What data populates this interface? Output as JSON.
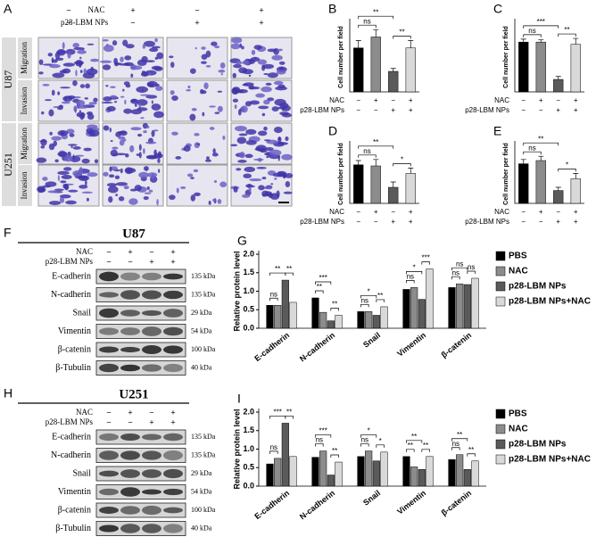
{
  "panel_a": {
    "label": "A",
    "conditions": [
      {
        "name": "NAC",
        "signs": [
          "−",
          "+",
          "−",
          "+"
        ]
      },
      {
        "name": "p28-LBM NPs",
        "signs": [
          "−",
          "−",
          "+",
          "+"
        ]
      }
    ],
    "cell_lines": [
      {
        "name": "U87",
        "assays": [
          "Migration",
          "Invasion"
        ]
      },
      {
        "name": "U251",
        "assays": [
          "Migration",
          "Invasion"
        ]
      }
    ]
  },
  "chart_data": [
    {
      "label": "B",
      "type": "bar",
      "ylabel": "Cell number per field",
      "conditions": [
        {
          "name": "NAC",
          "signs": [
            "−",
            "+",
            "−",
            "+"
          ]
        },
        {
          "name": "p28-LBM NPs",
          "signs": [
            "−",
            "−",
            "+",
            "+"
          ]
        }
      ],
      "values": [
        60,
        75,
        28,
        60
      ],
      "errors": [
        10,
        10,
        4,
        10
      ],
      "colors": [
        "#000000",
        "#8c8c8c",
        "#5a5a5a",
        "#d9d9d9"
      ],
      "ylim": [
        0,
        95
      ],
      "significance": [
        {
          "from": 0,
          "to": 1,
          "text": "ns"
        },
        {
          "from": 0,
          "to": 2,
          "text": "**"
        },
        {
          "from": 2,
          "to": 3,
          "text": "**"
        }
      ]
    },
    {
      "label": "C",
      "type": "bar",
      "ylabel": "Cell number per field",
      "conditions": [
        {
          "name": "NAC",
          "signs": [
            "−",
            "+",
            "−",
            "+"
          ]
        },
        {
          "name": "p28-LBM NPs",
          "signs": [
            "−",
            "−",
            "+",
            "+"
          ]
        }
      ],
      "values": [
        68,
        68,
        17,
        65
      ],
      "errors": [
        4,
        3,
        4,
        8
      ],
      "colors": [
        "#000000",
        "#8c8c8c",
        "#5a5a5a",
        "#d9d9d9"
      ],
      "ylim": [
        0,
        95
      ],
      "significance": [
        {
          "from": 0,
          "to": 1,
          "text": "ns"
        },
        {
          "from": 0,
          "to": 2,
          "text": "***"
        },
        {
          "from": 2,
          "to": 3,
          "text": "**"
        }
      ]
    },
    {
      "label": "D",
      "type": "bar",
      "ylabel": "Cell number per field",
      "conditions": [
        {
          "name": "NAC",
          "signs": [
            "−",
            "+",
            "−",
            "+"
          ]
        },
        {
          "name": "p28-LBM NPs",
          "signs": [
            "−",
            "−",
            "+",
            "+"
          ]
        }
      ],
      "values": [
        36,
        35,
        15,
        28
      ],
      "errors": [
        4,
        6,
        5,
        5
      ],
      "colors": [
        "#000000",
        "#8c8c8c",
        "#5a5a5a",
        "#d9d9d9"
      ],
      "ylim": [
        0,
        55
      ],
      "significance": [
        {
          "from": 0,
          "to": 1,
          "text": "ns"
        },
        {
          "from": 0,
          "to": 2,
          "text": "**"
        },
        {
          "from": 2,
          "to": 3,
          "text": "*"
        }
      ]
    },
    {
      "label": "E",
      "type": "bar",
      "ylabel": "Cell number per field",
      "conditions": [
        {
          "name": "NAC",
          "signs": [
            "−",
            "+",
            "−",
            "+"
          ]
        },
        {
          "name": "p28-LBM NPs",
          "signs": [
            "−",
            "−",
            "+",
            "+"
          ]
        }
      ],
      "values": [
        37,
        40,
        12,
        23
      ],
      "errors": [
        4,
        4,
        3,
        5
      ],
      "colors": [
        "#000000",
        "#8c8c8c",
        "#5a5a5a",
        "#d9d9d9"
      ],
      "ylim": [
        0,
        55
      ],
      "significance": [
        {
          "from": 0,
          "to": 1,
          "text": "ns"
        },
        {
          "from": 0,
          "to": 2,
          "text": "**"
        },
        {
          "from": 2,
          "to": 3,
          "text": "*"
        }
      ]
    },
    {
      "label": "G",
      "type": "grouped_bar",
      "ylabel": "Relative protein level",
      "categories": [
        "E-cadherin",
        "N-cadherin",
        "Snail",
        "Vimentin",
        "β-catenin"
      ],
      "series": [
        {
          "name": "PBS",
          "color": "#000000",
          "values": [
            0.62,
            0.82,
            0.45,
            1.05,
            1.1
          ]
        },
        {
          "name": "NAC",
          "color": "#8c8c8c",
          "values": [
            0.62,
            0.43,
            0.45,
            1.1,
            1.2
          ]
        },
        {
          "name": "p28-LBM NPs",
          "color": "#5a5a5a",
          "values": [
            1.3,
            0.2,
            0.35,
            0.78,
            1.18
          ]
        },
        {
          "name": "p28-LBM NPs+NAC",
          "color": "#d9d9d9",
          "values": [
            0.7,
            0.35,
            0.58,
            1.6,
            1.35
          ]
        }
      ],
      "ylim": [
        0,
        2
      ],
      "yticks": [
        {
          "value": 0,
          "label": "0.0"
        },
        0.5,
        {
          "value": 1,
          "label": "1.0"
        },
        1.5,
        {
          "value": 2,
          "label": "2.0"
        }
      ],
      "legend": "right",
      "significance": [
        [
          {
            "from": 0,
            "to": 1,
            "text": "ns"
          },
          {
            "from": 0,
            "to": 2,
            "text": "**"
          },
          {
            "from": 2,
            "to": 3,
            "text": "**"
          }
        ],
        [
          {
            "from": 0,
            "to": 1,
            "text": "**"
          },
          {
            "from": 0,
            "to": 2,
            "text": "***"
          },
          {
            "from": 2,
            "to": 3,
            "text": "**"
          }
        ],
        [
          {
            "from": 0,
            "to": 1,
            "text": "ns"
          },
          {
            "from": 0,
            "to": 2,
            "text": "*"
          },
          {
            "from": 2,
            "to": 3,
            "text": "**"
          }
        ],
        [
          {
            "from": 0,
            "to": 1,
            "text": "ns"
          },
          {
            "from": 0,
            "to": 2,
            "text": "*"
          },
          {
            "from": 2,
            "to": 3,
            "text": "***"
          }
        ],
        [
          {
            "from": 0,
            "to": 1,
            "text": "ns"
          },
          {
            "from": 0,
            "to": 2,
            "text": "ns"
          },
          {
            "from": 2,
            "to": 3,
            "text": "ns"
          }
        ]
      ]
    },
    {
      "label": "I",
      "type": "grouped_bar",
      "ylabel": "Relative protein level",
      "categories": [
        "E-cadherin",
        "N-cadherin",
        "Snail",
        "Vimentin",
        "β-catenin"
      ],
      "series": [
        {
          "name": "PBS",
          "color": "#000000",
          "values": [
            0.6,
            0.78,
            0.8,
            0.8,
            0.72
          ]
        },
        {
          "name": "NAC",
          "color": "#8c8c8c",
          "values": [
            0.75,
            0.95,
            0.95,
            0.52,
            0.85
          ]
        },
        {
          "name": "p28-LBM NPs",
          "color": "#5a5a5a",
          "values": [
            1.7,
            0.3,
            0.68,
            0.45,
            0.45
          ]
        },
        {
          "name": "p28-LBM NPs+NAC",
          "color": "#d9d9d9",
          "values": [
            0.8,
            0.65,
            0.92,
            0.8,
            0.68
          ]
        }
      ],
      "ylim": [
        0,
        2
      ],
      "yticks": [
        {
          "value": 0,
          "label": "0.0"
        },
        0.5,
        {
          "value": 1,
          "label": "1.0"
        },
        1.5,
        {
          "value": 2,
          "label": "2.0"
        }
      ],
      "legend": "right",
      "significance": [
        [
          {
            "from": 0,
            "to": 1,
            "text": "ns"
          },
          {
            "from": 0,
            "to": 2,
            "text": "***"
          },
          {
            "from": 2,
            "to": 3,
            "text": "**"
          }
        ],
        [
          {
            "from": 0,
            "to": 1,
            "text": "ns"
          },
          {
            "from": 0,
            "to": 2,
            "text": "***"
          },
          {
            "from": 2,
            "to": 3,
            "text": "**"
          }
        ],
        [
          {
            "from": 0,
            "to": 1,
            "text": "ns"
          },
          {
            "from": 0,
            "to": 2,
            "text": "*"
          },
          {
            "from": 2,
            "to": 3,
            "text": "*"
          }
        ],
        [
          {
            "from": 0,
            "to": 1,
            "text": "**"
          },
          {
            "from": 0,
            "to": 2,
            "text": "**"
          },
          {
            "from": 2,
            "to": 3,
            "text": "**"
          }
        ],
        [
          {
            "from": 0,
            "to": 1,
            "text": "ns"
          },
          {
            "from": 0,
            "to": 2,
            "text": "**"
          },
          {
            "from": 2,
            "to": 3,
            "text": "**"
          }
        ]
      ]
    }
  ],
  "blots": [
    {
      "label": "F",
      "title": "U87",
      "conditions": [
        {
          "name": "NAC",
          "signs": [
            "−",
            "+",
            "−",
            "+"
          ]
        },
        {
          "name": "p28-LBM NPs",
          "signs": [
            "−",
            "−",
            "+",
            "+"
          ]
        }
      ],
      "rows": [
        {
          "protein": "E-cadherin",
          "size": "135 kDa"
        },
        {
          "protein": "N-cadherin",
          "size": "135 kDa"
        },
        {
          "protein": "Snail",
          "size": "29 kDa"
        },
        {
          "protein": "Vimentin",
          "size": "54 kDa"
        },
        {
          "protein": "β-catenin",
          "size": "100 kDa"
        },
        {
          "protein": "β-Tubulin",
          "size": "40 kDa"
        }
      ]
    },
    {
      "label": "H",
      "title": "U251",
      "conditions": [
        {
          "name": "NAC",
          "signs": [
            "−",
            "+",
            "−",
            "+"
          ]
        },
        {
          "name": "p28-LBM NPs",
          "signs": [
            "−",
            "−",
            "+",
            "+"
          ]
        }
      ],
      "rows": [
        {
          "protein": "E-cadherin",
          "size": "135 kDa"
        },
        {
          "protein": "N-cadherin",
          "size": "135 kDa"
        },
        {
          "protein": "Snail",
          "size": "29 kDa"
        },
        {
          "protein": "Vimentin",
          "size": "54 kDa"
        },
        {
          "protein": "β-catenin",
          "size": "100 kDa"
        },
        {
          "protein": "β-Tubulin",
          "size": "40 kDa"
        }
      ]
    }
  ]
}
